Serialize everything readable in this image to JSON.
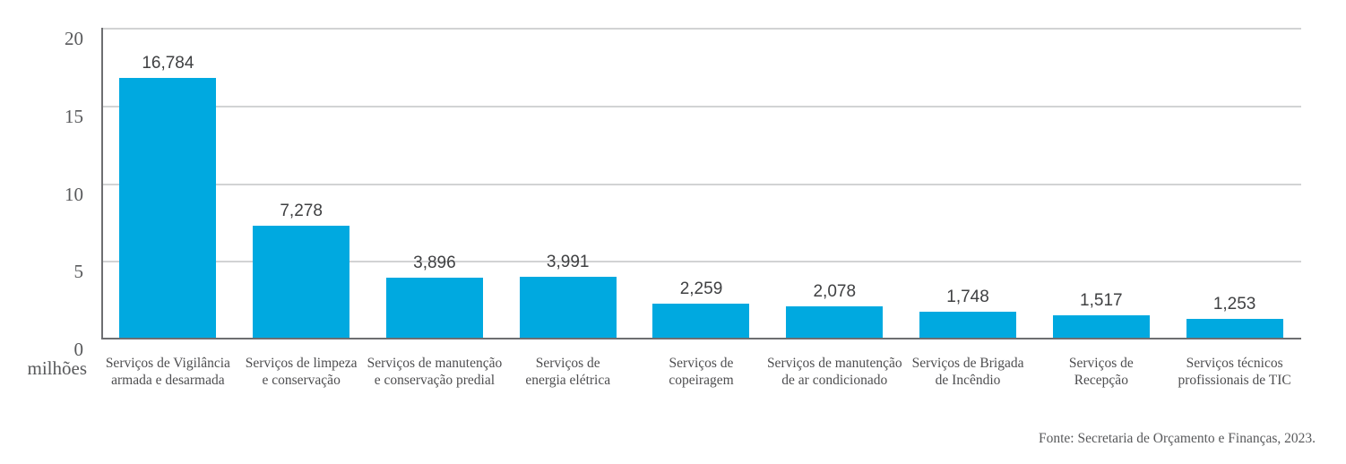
{
  "chart_data": {
    "type": "bar",
    "title": "",
    "unit_label": "milhões",
    "categories": [
      "Serviços de Vigilância\narmada e desarmada",
      "Serviços de limpeza\ne conservação",
      "Serviços de manutenção\ne conservação predial",
      "Serviços de\nenergia elétrica",
      "Serviços de\ncopeiragem",
      "Serviços de manutenção\nde ar condicionado",
      "Serviços de Brigada\nde Incêndio",
      "Serviços de\nRecepção",
      "Serviços técnicos\nprofissionais de TIC"
    ],
    "values": [
      16.784,
      7.278,
      3.896,
      3.991,
      2.259,
      2.078,
      1.748,
      1.517,
      1.253
    ],
    "value_labels": [
      "16,784",
      "7,278",
      "3,896",
      "3,991",
      "2,259",
      "2,078",
      "1,748",
      "1,517",
      "1,253"
    ],
    "yticks": [
      0,
      5,
      10,
      15,
      20
    ],
    "ylim": [
      0,
      20
    ],
    "grid": true,
    "legend": "none",
    "bar_color": "#00a9e0"
  },
  "colors": {
    "bar": "#00a9e0",
    "axis": "#6d6e71",
    "grid": "#d2d3d4",
    "tick_text": "#58595b",
    "value_text": "#3f4042",
    "category_text": "#4e4e50"
  },
  "source": "Fonte: Secretaria de Orçamento e Finanças, 2023."
}
